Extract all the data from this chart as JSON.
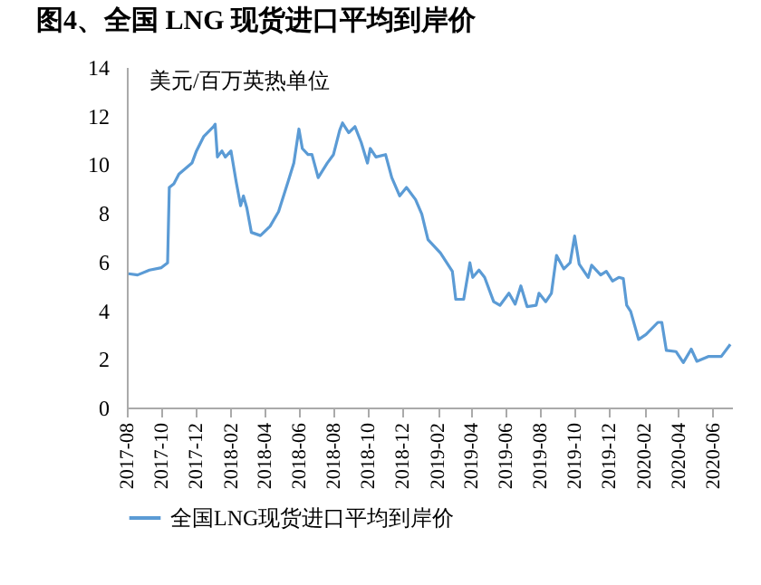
{
  "chart_data": {
    "type": "line",
    "title": "图4、全国 LNG 现货进口平均到岸价",
    "ylabel": "美元/百万英热单位",
    "x": [
      "2017-08-04",
      "2017-08-20",
      "2017-09-10",
      "2017-10-01",
      "2017-10-12",
      "2017-10-15",
      "2017-10-23",
      "2017-11-01",
      "2017-11-24",
      "2017-12-02",
      "2017-12-15",
      "2018-01-01",
      "2018-01-04",
      "2018-01-08",
      "2018-01-16",
      "2018-01-22",
      "2018-02-01",
      "2018-02-10",
      "2018-02-18",
      "2018-02-23",
      "2018-03-01",
      "2018-03-09",
      "2018-03-25",
      "2018-04-11",
      "2018-04-26",
      "2018-05-13",
      "2018-05-23",
      "2018-06-01",
      "2018-06-07",
      "2018-06-17",
      "2018-06-24",
      "2018-07-05",
      "2018-07-21",
      "2018-08-01",
      "2018-08-12",
      "2018-08-17",
      "2018-08-28",
      "2018-09-08",
      "2018-09-19",
      "2018-09-30",
      "2018-10-05",
      "2018-10-15",
      "2018-11-01",
      "2018-11-12",
      "2018-11-26",
      "2018-12-08",
      "2018-12-24",
      "2019-01-04",
      "2019-01-15",
      "2019-02-06",
      "2019-02-27",
      "2019-03-05",
      "2019-03-19",
      "2019-03-30",
      "2019-04-04",
      "2019-04-15",
      "2019-04-25",
      "2019-05-11",
      "2019-05-22",
      "2019-06-07",
      "2019-06-18",
      "2019-06-28",
      "2019-07-09",
      "2019-07-25",
      "2019-07-30",
      "2019-08-11",
      "2019-08-21",
      "2019-08-30",
      "2019-09-12",
      "2019-09-23",
      "2019-10-01",
      "2019-10-09",
      "2019-10-25",
      "2019-10-31",
      "2019-11-16",
      "2019-11-26",
      "2019-12-07",
      "2019-12-18",
      "2019-12-26",
      "2020-01-01",
      "2020-01-08",
      "2020-01-22",
      "2020-02-04",
      "2020-02-25",
      "2020-03-03",
      "2020-03-11",
      "2020-03-28",
      "2020-04-10",
      "2020-04-24",
      "2020-05-04",
      "2020-05-25",
      "2020-06-16",
      "2020-07-02"
    ],
    "series": [
      {
        "name": "全国LNG现货进口平均到岸价",
        "color": "#5b9bd5",
        "values": [
          5.5,
          5.45,
          5.65,
          5.75,
          5.95,
          9.05,
          9.2,
          9.6,
          10.05,
          10.55,
          11.15,
          11.55,
          11.65,
          10.3,
          10.55,
          10.3,
          10.55,
          9.3,
          8.3,
          8.7,
          8.2,
          7.2,
          7.07,
          7.45,
          8.05,
          9.3,
          10.05,
          11.45,
          10.65,
          10.4,
          10.4,
          9.45,
          10.05,
          10.4,
          11.4,
          11.7,
          11.3,
          11.55,
          10.9,
          10.05,
          10.65,
          10.3,
          10.4,
          9.45,
          8.7,
          9.05,
          8.55,
          7.95,
          6.9,
          6.35,
          5.6,
          4.45,
          4.45,
          5.95,
          5.35,
          5.65,
          5.35,
          4.35,
          4.2,
          4.7,
          4.25,
          5.0,
          4.15,
          4.2,
          4.7,
          4.35,
          4.7,
          6.25,
          5.7,
          5.95,
          7.05,
          5.9,
          5.35,
          5.85,
          5.45,
          5.6,
          5.2,
          5.35,
          5.3,
          4.2,
          3.95,
          2.8,
          3.0,
          3.5,
          3.5,
          2.35,
          2.3,
          1.85,
          2.4,
          1.9,
          2.1,
          2.1,
          2.6
        ]
      }
    ],
    "xlim": [
      "2017-08-01",
      "2020-07-05"
    ],
    "xticks": [
      "2017-08",
      "2017-10",
      "2017-12",
      "2018-02",
      "2018-04",
      "2018-06",
      "2018-08",
      "2018-10",
      "2018-12",
      "2019-02",
      "2019-04",
      "2019-06",
      "2019-08",
      "2019-10",
      "2019-12",
      "2020-02",
      "2020-04",
      "2020-06"
    ],
    "ylim": [
      0,
      14
    ],
    "yticks": [
      0,
      2,
      4,
      6,
      8,
      10,
      12,
      14
    ],
    "grid": false,
    "legend": "bottom",
    "line_style": "solid",
    "marker": "none"
  }
}
